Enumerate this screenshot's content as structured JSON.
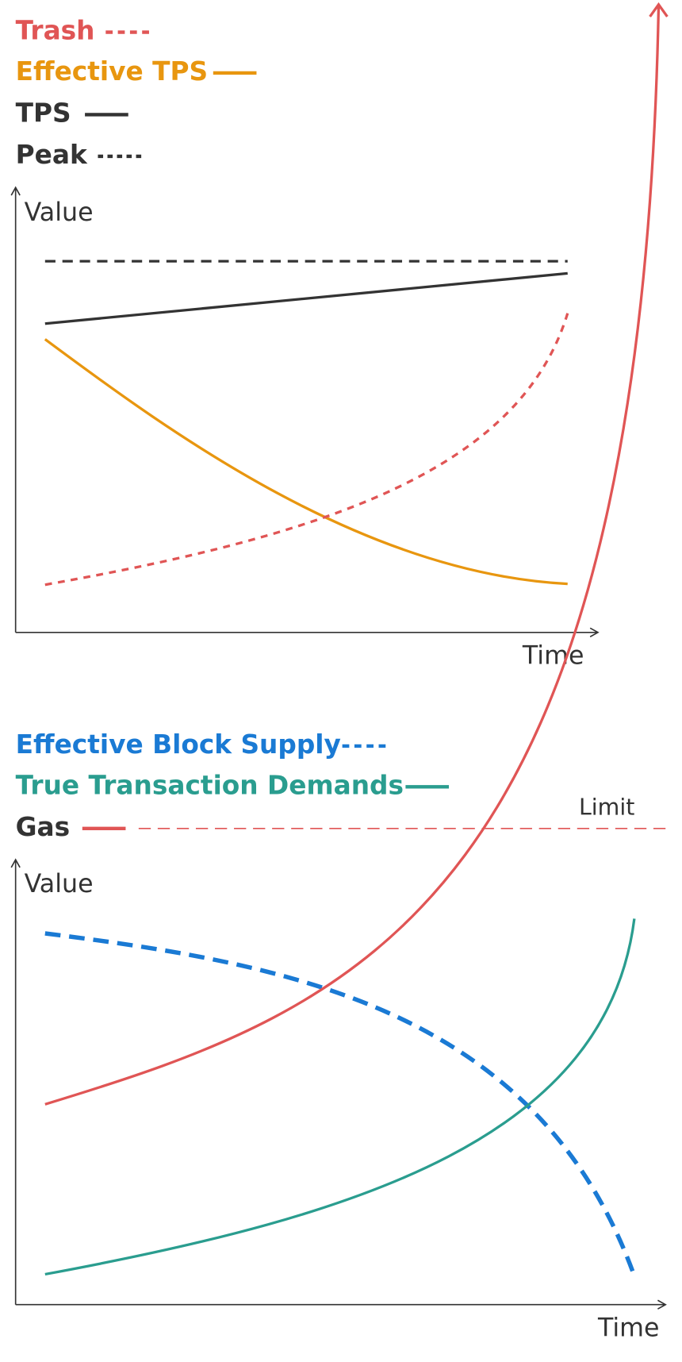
{
  "top_chart": {
    "legend": [
      "Trash",
      "Effective TPS",
      "TPS",
      "Peak"
    ],
    "y_label": "Value",
    "x_label": "Time"
  },
  "bottom_chart": {
    "legend": [
      "Effective Block Supply",
      "True Transaction Demands",
      "Gas"
    ],
    "limit_label": "Limit",
    "y_label": "Value",
    "x_label": "Time"
  }
}
